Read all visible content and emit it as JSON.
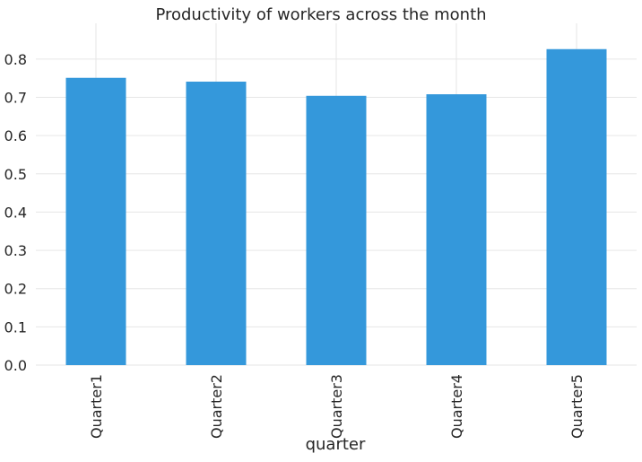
{
  "chart_data": {
    "type": "bar",
    "title": "Productivity of workers across the month",
    "xlabel": "quarter",
    "ylabel": "",
    "categories": [
      "Quarter1",
      "Quarter2",
      "Quarter3",
      "Quarter4",
      "Quarter5"
    ],
    "values": [
      0.751,
      0.741,
      0.704,
      0.708,
      0.826
    ],
    "ylim": [
      0,
      0.87
    ],
    "yticks": [
      "0.0",
      "0.1",
      "0.2",
      "0.3",
      "0.4",
      "0.5",
      "0.6",
      "0.7",
      "0.8"
    ],
    "grid": true,
    "bar_color": "#3498db",
    "grid_color": "#e6e6e6"
  }
}
